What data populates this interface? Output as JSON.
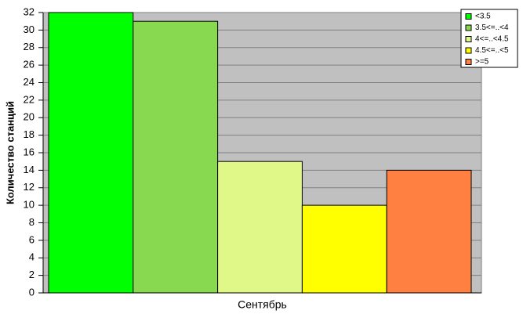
{
  "chart_data": {
    "type": "bar",
    "y_label": "Количество станций",
    "categories": [
      "Сентябрь"
    ],
    "series": [
      {
        "name": "<3.5",
        "color": "#00ff00",
        "values": [
          32
        ]
      },
      {
        "name": "3.5<=..<4",
        "color": "#88d850",
        "values": [
          31
        ]
      },
      {
        "name": "4<=..<4.5",
        "color": "#e0f888",
        "values": [
          15
        ]
      },
      {
        "name": "4.5<=..<5",
        "color": "#ffff00",
        "values": [
          10
        ]
      },
      {
        "name": ">=5",
        "color": "#ff8040",
        "values": [
          14
        ]
      }
    ],
    "ylim": [
      0,
      32
    ],
    "yticks": [
      0,
      2,
      4,
      6,
      8,
      10,
      12,
      14,
      16,
      18,
      20,
      22,
      24,
      26,
      28,
      30,
      32
    ],
    "grid": true,
    "legend": "top-right"
  }
}
